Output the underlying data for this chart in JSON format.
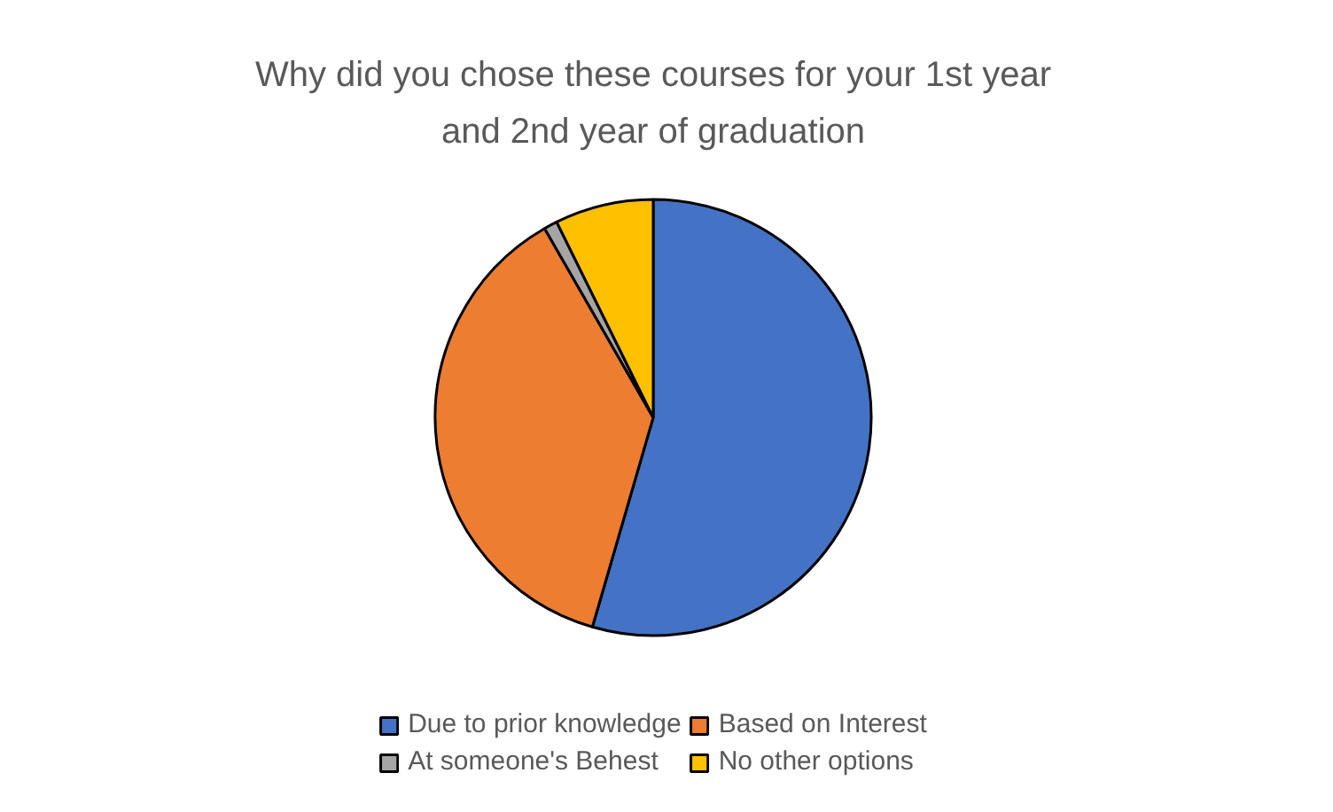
{
  "chart_data": {
    "type": "pie",
    "title": "Why did you chose these courses for your 1st year and 2nd year of graduation",
    "categories": [
      "Due to prior knowledge",
      "Based on Interest",
      "At someone's Behest",
      "No other options"
    ],
    "values": [
      54.5,
      37.2,
      1,
      7.3
    ],
    "colors": [
      "#4472c4",
      "#ed7d31",
      "#a5a5a5",
      "#ffc000"
    ],
    "legend": "bottom"
  }
}
